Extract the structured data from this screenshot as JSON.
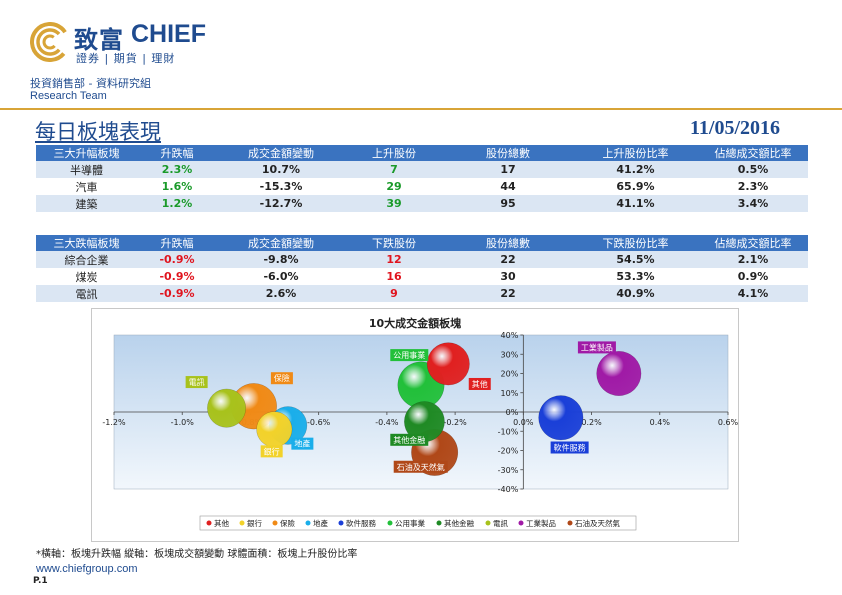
{
  "brand": {
    "name_cn": "致富",
    "name_en": "CHIEF",
    "tagline": "證券 | 期貨 | 理財"
  },
  "header": {
    "department": "投資銷售部 - 資料研究組",
    "team": "Research Team",
    "title": "每日板塊表現",
    "date": "11/05/2016"
  },
  "top_gainers": {
    "headers": [
      "三大升幅板塊",
      "升跌幅",
      "成交金額變動",
      "上升股份",
      "股份總數",
      "上升股份比率",
      "佔總成交額比率"
    ],
    "rows": [
      [
        "半導體",
        "2.3%",
        "10.7%",
        "7",
        "17",
        "41.2%",
        "0.5%"
      ],
      [
        "汽車",
        "1.6%",
        "-15.3%",
        "29",
        "44",
        "65.9%",
        "2.3%"
      ],
      [
        "建築",
        "1.2%",
        "-12.7%",
        "39",
        "95",
        "41.1%",
        "3.4%"
      ]
    ]
  },
  "top_losers": {
    "headers": [
      "三大跌幅板塊",
      "升跌幅",
      "成交金額變動",
      "下跌股份",
      "股份總數",
      "下跌股份比率",
      "佔總成交額比率"
    ],
    "rows": [
      [
        "綜合企業",
        "-0.9%",
        "-9.8%",
        "12",
        "22",
        "54.5%",
        "2.1%"
      ],
      [
        "煤炭",
        "-0.9%",
        "-6.0%",
        "16",
        "30",
        "53.3%",
        "0.9%"
      ],
      [
        "電訊",
        "-0.9%",
        "2.6%",
        "9",
        "22",
        "40.9%",
        "4.1%"
      ]
    ]
  },
  "colors": {
    "brand_blue": "#1f4b8f",
    "gold": "#d8a437",
    "header_blue": "#3a73c0",
    "positive": "#1a9a2a",
    "negative": "#e0141e"
  },
  "chart_data": {
    "type": "bubble",
    "title": "10大成交金額板塊",
    "xlim": [
      -1.2,
      0.6
    ],
    "ylim": [
      -40,
      40
    ],
    "x_ticks": [
      "-1.2%",
      "-1.0%",
      "-0.8%",
      "-0.6%",
      "-0.4%",
      "-0.2%",
      "0.0%",
      "0.2%",
      "0.4%",
      "0.6%"
    ],
    "y_ticks": [
      "40%",
      "30%",
      "20%",
      "10%",
      "0%",
      "-10%",
      "-20%",
      "-30%",
      "-40%"
    ],
    "series": [
      {
        "name": "其他",
        "x": -0.22,
        "y": 25,
        "size": 0.5,
        "color": "#e02020"
      },
      {
        "name": "銀行",
        "x": -0.73,
        "y": -9,
        "size": 0.35,
        "color": "#f2d22a"
      },
      {
        "name": "保險",
        "x": -0.79,
        "y": 3,
        "size": 0.58,
        "color": "#f08a16"
      },
      {
        "name": "地產",
        "x": -0.69,
        "y": -7,
        "size": 0.4,
        "color": "#1aaeea"
      },
      {
        "name": "軟件服務",
        "x": 0.11,
        "y": -3,
        "size": 0.55,
        "color": "#1a3fd8"
      },
      {
        "name": "公用事業",
        "x": -0.3,
        "y": 14,
        "size": 0.6,
        "color": "#22c03a"
      },
      {
        "name": "其他金融",
        "x": -0.29,
        "y": -5,
        "size": 0.45,
        "color": "#1f8a24"
      },
      {
        "name": "電訊",
        "x": -0.87,
        "y": 2,
        "size": 0.41,
        "color": "#a8c21c"
      },
      {
        "name": "工業製品",
        "x": 0.28,
        "y": 20,
        "size": 0.55,
        "color": "#a01aa6"
      },
      {
        "name": "石油及天然氣",
        "x": -0.26,
        "y": -21,
        "size": 0.6,
        "color": "#b04818"
      }
    ],
    "legend": [
      "其他",
      "銀行",
      "保險",
      "地產",
      "軟件服務",
      "公用事業",
      "其他金融",
      "電訊",
      "工業製品",
      "石油及天然氣"
    ],
    "legend_position": "bottom"
  },
  "footnote": "*橫軸：板塊升跌幅      縱軸：板塊成交額變動      球體面積：板塊上升股份比率",
  "website": "www.chiefgroup.com",
  "page_number": "P.1"
}
